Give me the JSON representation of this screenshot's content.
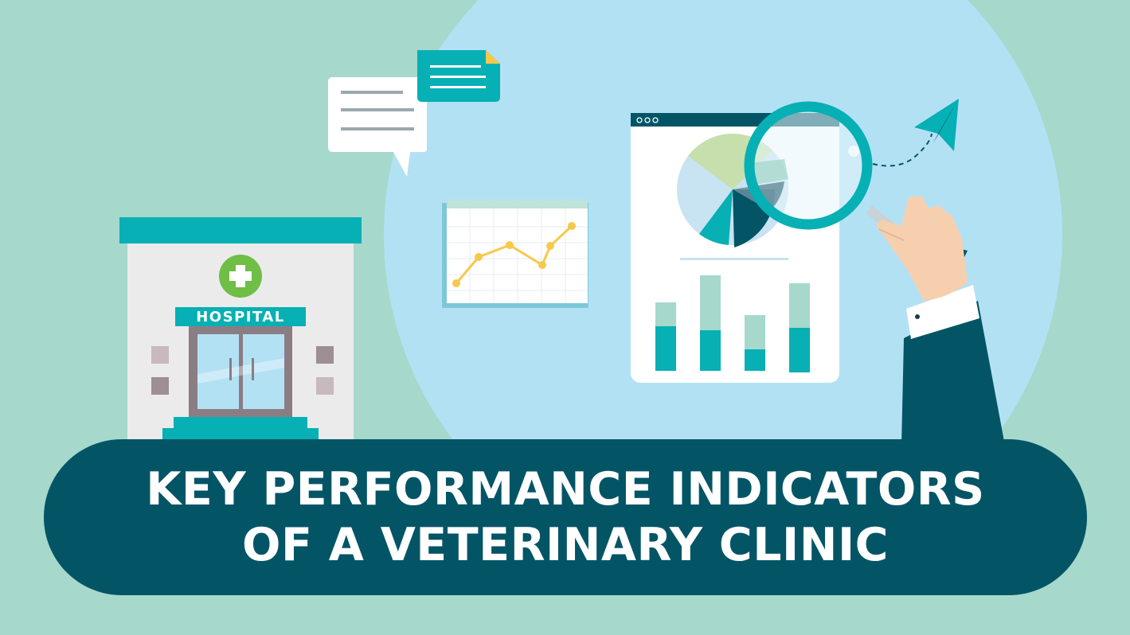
{
  "hospital": {
    "sign_label": "HOSPITAL"
  },
  "title": {
    "line1": "KEY PERFORMANCE INDICATORS",
    "line2": "OF A VETERINARY CLINIC"
  },
  "colors": {
    "background": "#a6d8cc",
    "circle": "#b3e1f4",
    "teal": "#06b0b4",
    "dark_teal": "#035566",
    "yellow": "#f6c94a",
    "green_cross": "#6fbe45",
    "white": "#ffffff"
  },
  "icons": [
    "hospital-icon",
    "chat-bubble-icon",
    "line-chart-icon",
    "dashboard-report-icon",
    "magnifying-glass-icon",
    "paper-plane-icon",
    "hand-icon"
  ]
}
